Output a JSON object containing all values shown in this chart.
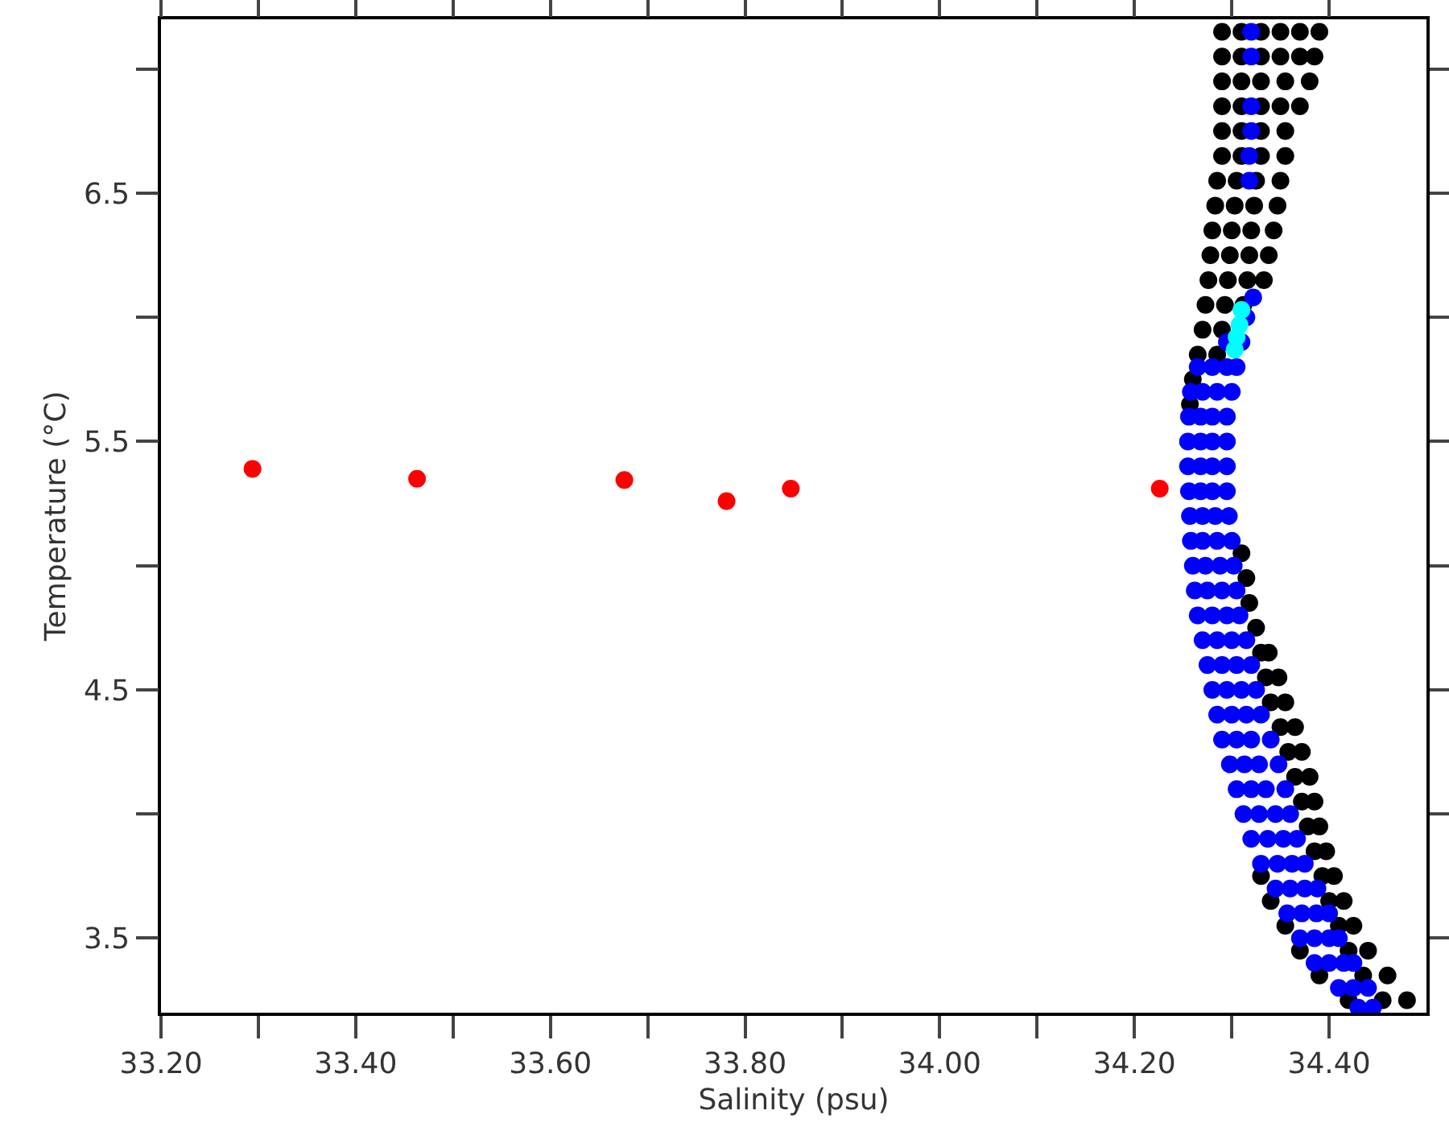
{
  "chart_data": {
    "type": "scatter",
    "xlabel": "Salinity (psu)",
    "ylabel": "Temperature (°C)",
    "xlim": [
      33.2,
      34.5
    ],
    "ylim": [
      3.2,
      7.2
    ],
    "xticks": [
      {
        "value": 33.2,
        "label": "33.20"
      },
      {
        "value": 33.3,
        "label": null
      },
      {
        "value": 33.4,
        "label": "33.40"
      },
      {
        "value": 33.5,
        "label": null
      },
      {
        "value": 33.6,
        "label": "33.60"
      },
      {
        "value": 33.7,
        "label": null
      },
      {
        "value": 33.8,
        "label": "33.80"
      },
      {
        "value": 33.9,
        "label": null
      },
      {
        "value": 34.0,
        "label": "34.00"
      },
      {
        "value": 34.1,
        "label": null
      },
      {
        "value": 34.2,
        "label": "34.20"
      },
      {
        "value": 34.3,
        "label": null
      },
      {
        "value": 34.4,
        "label": "34.40"
      }
    ],
    "yticks": [
      3.5,
      {
        "value": 4.0,
        "label": null
      },
      4.5,
      {
        "value": 5.0,
        "label": null
      },
      5.5,
      {
        "value": 6.0,
        "label": null
      },
      6.5,
      {
        "value": 7.0,
        "label": null
      }
    ],
    "grid": false,
    "marker": "circle",
    "series": [
      {
        "color": "#000000",
        "x": [
          34.29,
          34.31,
          34.33,
          34.35,
          34.37,
          34.39,
          34.29,
          34.31,
          34.33,
          34.35,
          34.37,
          34.385,
          34.29,
          34.31,
          34.33,
          34.355,
          34.38,
          34.29,
          34.31,
          34.33,
          34.35,
          34.37,
          34.29,
          34.31,
          34.33,
          34.355,
          34.29,
          34.31,
          34.33,
          34.355,
          34.285,
          34.305,
          34.325,
          34.35,
          34.283,
          34.303,
          34.323,
          34.347,
          34.28,
          34.3,
          34.32,
          34.343,
          34.278,
          34.298,
          34.318,
          34.338,
          34.276,
          34.296,
          34.316,
          34.333,
          34.273,
          34.293,
          34.312,
          34.27,
          34.29,
          34.265,
          34.285,
          34.26,
          34.257,
          34.31,
          34.315,
          34.318,
          34.325,
          34.33,
          34.338,
          34.335,
          34.348,
          34.34,
          34.355,
          34.35,
          34.365,
          34.358,
          34.372,
          34.365,
          34.38,
          34.372,
          34.385,
          34.378,
          34.39,
          34.385,
          34.397,
          34.33,
          34.393,
          34.405,
          34.34,
          34.4,
          34.415,
          34.355,
          34.41,
          34.425,
          34.37,
          34.42,
          34.44,
          34.39,
          34.435,
          34.46,
          34.42,
          34.455,
          34.48
        ],
        "values": [
          7.15,
          7.15,
          7.15,
          7.15,
          7.15,
          7.15,
          7.05,
          7.05,
          7.05,
          7.05,
          7.05,
          7.05,
          6.95,
          6.95,
          6.95,
          6.95,
          6.95,
          6.85,
          6.85,
          6.85,
          6.85,
          6.85,
          6.75,
          6.75,
          6.75,
          6.75,
          6.65,
          6.65,
          6.65,
          6.65,
          6.55,
          6.55,
          6.55,
          6.55,
          6.45,
          6.45,
          6.45,
          6.45,
          6.35,
          6.35,
          6.35,
          6.35,
          6.25,
          6.25,
          6.25,
          6.25,
          6.15,
          6.15,
          6.15,
          6.15,
          6.05,
          6.05,
          6.05,
          5.95,
          5.95,
          5.85,
          5.85,
          5.75,
          5.65,
          5.05,
          4.95,
          4.85,
          4.75,
          4.65,
          4.65,
          4.55,
          4.55,
          4.45,
          4.45,
          4.35,
          4.35,
          4.25,
          4.25,
          4.15,
          4.15,
          4.05,
          4.05,
          3.95,
          3.95,
          3.85,
          3.85,
          3.75,
          3.75,
          3.75,
          3.65,
          3.65,
          3.65,
          3.55,
          3.55,
          3.55,
          3.45,
          3.45,
          3.45,
          3.35,
          3.35,
          3.35,
          3.25,
          3.25,
          3.25
        ]
      },
      {
        "color": "#0000ff",
        "x": [
          34.32,
          34.32,
          34.32,
          34.32,
          34.318,
          34.318,
          34.322,
          34.315,
          34.31,
          34.295,
          34.265,
          34.28,
          34.295,
          34.305,
          34.258,
          34.27,
          34.285,
          34.3,
          34.256,
          34.268,
          34.28,
          34.295,
          34.255,
          34.268,
          34.28,
          34.295,
          34.255,
          34.268,
          34.28,
          34.295,
          34.256,
          34.268,
          34.28,
          34.295,
          34.257,
          34.27,
          34.283,
          34.297,
          34.258,
          34.27,
          34.285,
          34.3,
          34.26,
          34.273,
          34.288,
          34.302,
          34.262,
          34.275,
          34.29,
          34.305,
          34.265,
          34.28,
          34.295,
          34.308,
          34.27,
          34.285,
          34.3,
          34.315,
          34.275,
          34.29,
          34.305,
          34.32,
          34.28,
          34.295,
          34.31,
          34.325,
          34.285,
          34.3,
          34.315,
          34.33,
          34.29,
          34.305,
          34.32,
          34.34,
          34.298,
          34.313,
          34.328,
          34.348,
          34.305,
          34.32,
          34.335,
          34.355,
          34.312,
          34.328,
          34.345,
          34.36,
          34.32,
          34.337,
          34.353,
          34.367,
          34.33,
          34.347,
          34.362,
          34.375,
          34.345,
          34.36,
          34.375,
          34.388,
          34.357,
          34.372,
          34.387,
          34.4,
          34.37,
          34.385,
          34.4,
          34.41,
          34.385,
          34.4,
          34.415,
          34.425,
          34.41,
          34.425,
          34.44,
          34.43,
          34.445
        ],
        "values": [
          7.15,
          7.05,
          6.85,
          6.75,
          6.65,
          6.55,
          6.08,
          6.0,
          5.9,
          5.9,
          5.8,
          5.8,
          5.8,
          5.8,
          5.7,
          5.7,
          5.7,
          5.7,
          5.6,
          5.6,
          5.6,
          5.6,
          5.5,
          5.5,
          5.5,
          5.5,
          5.4,
          5.4,
          5.4,
          5.4,
          5.3,
          5.3,
          5.3,
          5.3,
          5.2,
          5.2,
          5.2,
          5.2,
          5.1,
          5.1,
          5.1,
          5.1,
          5.0,
          5.0,
          5.0,
          5.0,
          4.9,
          4.9,
          4.9,
          4.9,
          4.8,
          4.8,
          4.8,
          4.8,
          4.7,
          4.7,
          4.7,
          4.7,
          4.6,
          4.6,
          4.6,
          4.6,
          4.5,
          4.5,
          4.5,
          4.5,
          4.4,
          4.4,
          4.4,
          4.4,
          4.3,
          4.3,
          4.3,
          4.3,
          4.2,
          4.2,
          4.2,
          4.2,
          4.1,
          4.1,
          4.1,
          4.1,
          4.0,
          4.0,
          4.0,
          4.0,
          3.9,
          3.9,
          3.9,
          3.9,
          3.8,
          3.8,
          3.8,
          3.8,
          3.7,
          3.7,
          3.7,
          3.7,
          3.6,
          3.6,
          3.6,
          3.6,
          3.5,
          3.5,
          3.5,
          3.5,
          3.4,
          3.4,
          3.4,
          3.4,
          3.3,
          3.3,
          3.3,
          3.22,
          3.22
        ]
      },
      {
        "color": "#00ffff",
        "x": [
          34.31,
          34.308,
          34.305,
          34.303
        ],
        "values": [
          6.03,
          5.97,
          5.92,
          5.87
        ]
      },
      {
        "color": "#ff0000",
        "x": [
          33.294,
          33.463,
          33.676,
          33.781,
          33.847,
          34.226
        ],
        "values": [
          5.39,
          5.35,
          5.345,
          5.26,
          5.31,
          5.31
        ]
      }
    ]
  }
}
